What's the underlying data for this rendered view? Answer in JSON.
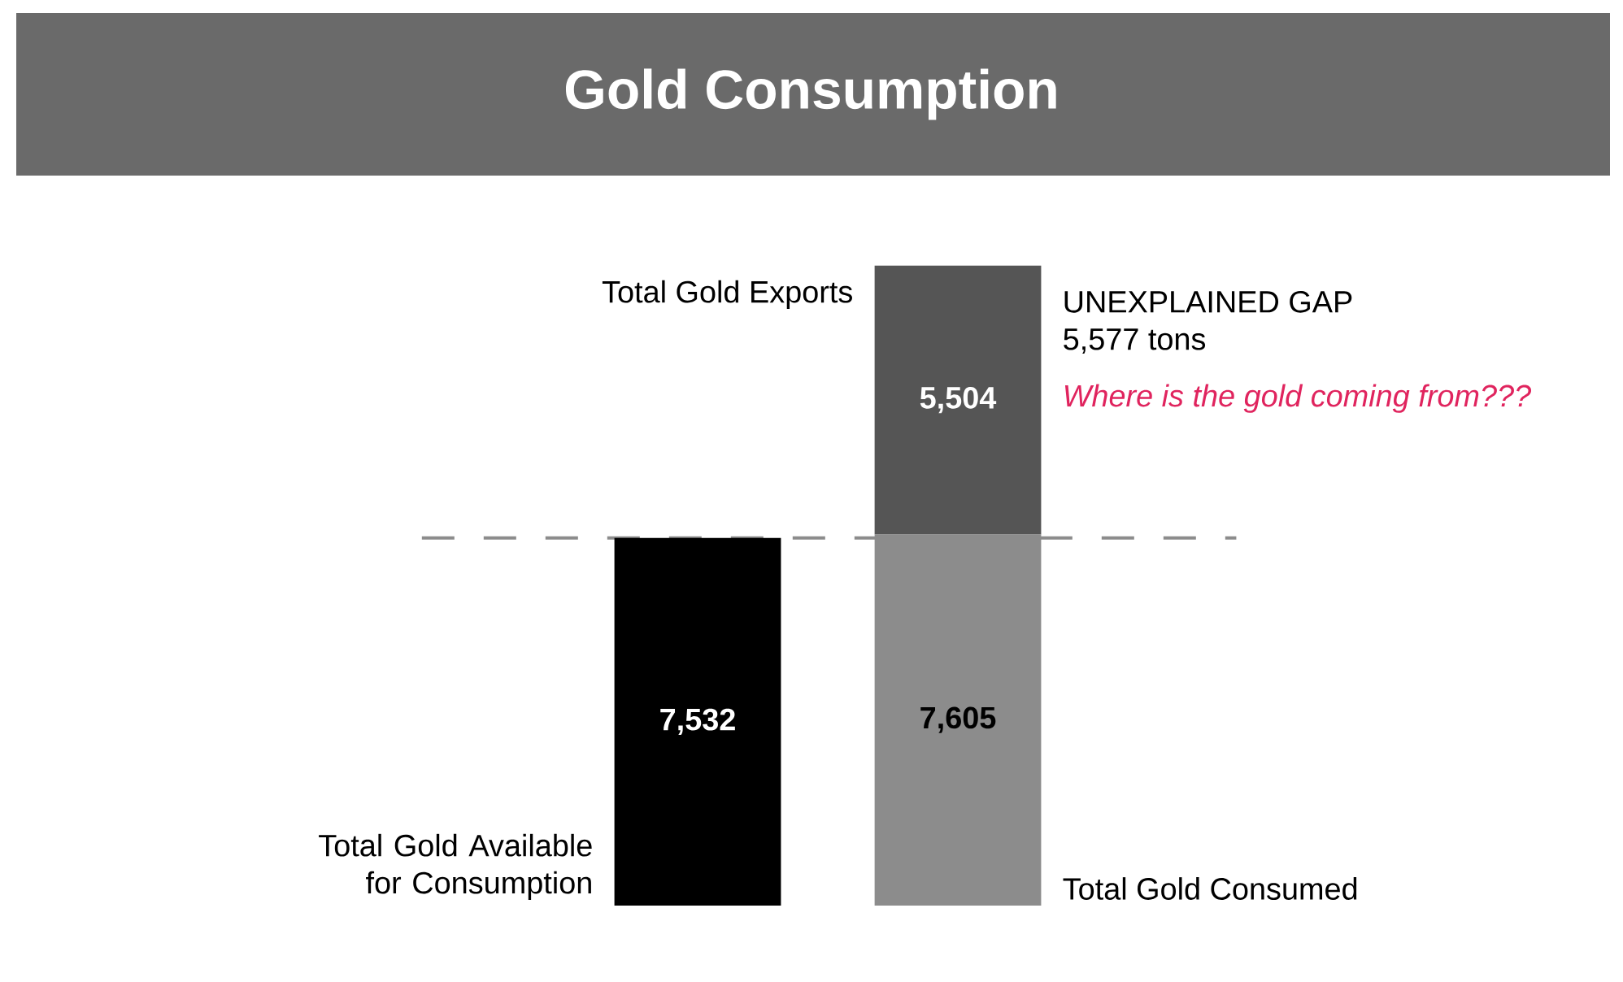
{
  "chart_data": {
    "type": "bar",
    "title": "Gold Consumption",
    "categories": [
      null,
      null
    ],
    "stacked": true,
    "series": [
      {
        "name": "Total Gold Available for Consumption",
        "color": "#000000",
        "values": [
          7532,
          null
        ],
        "value_labels": [
          "7,532",
          null
        ]
      },
      {
        "name": "Total Gold Consumed",
        "color": "#8c8c8c",
        "values": [
          null,
          7605
        ],
        "value_labels": [
          null,
          "7,605"
        ]
      },
      {
        "name": "Total Gold Exports",
        "color": "#555555",
        "values": [
          null,
          5504
        ],
        "value_labels": [
          null,
          "5,504"
        ]
      }
    ],
    "ref_lines": [
      {
        "axis": "y",
        "value": 7532,
        "line_style": "dashed",
        "color": "#8c8c8c"
      }
    ],
    "annotations": [
      "UNEXPLAINED GAP",
      "5,577 tons",
      "Where is the gold coming from???"
    ]
  }
}
